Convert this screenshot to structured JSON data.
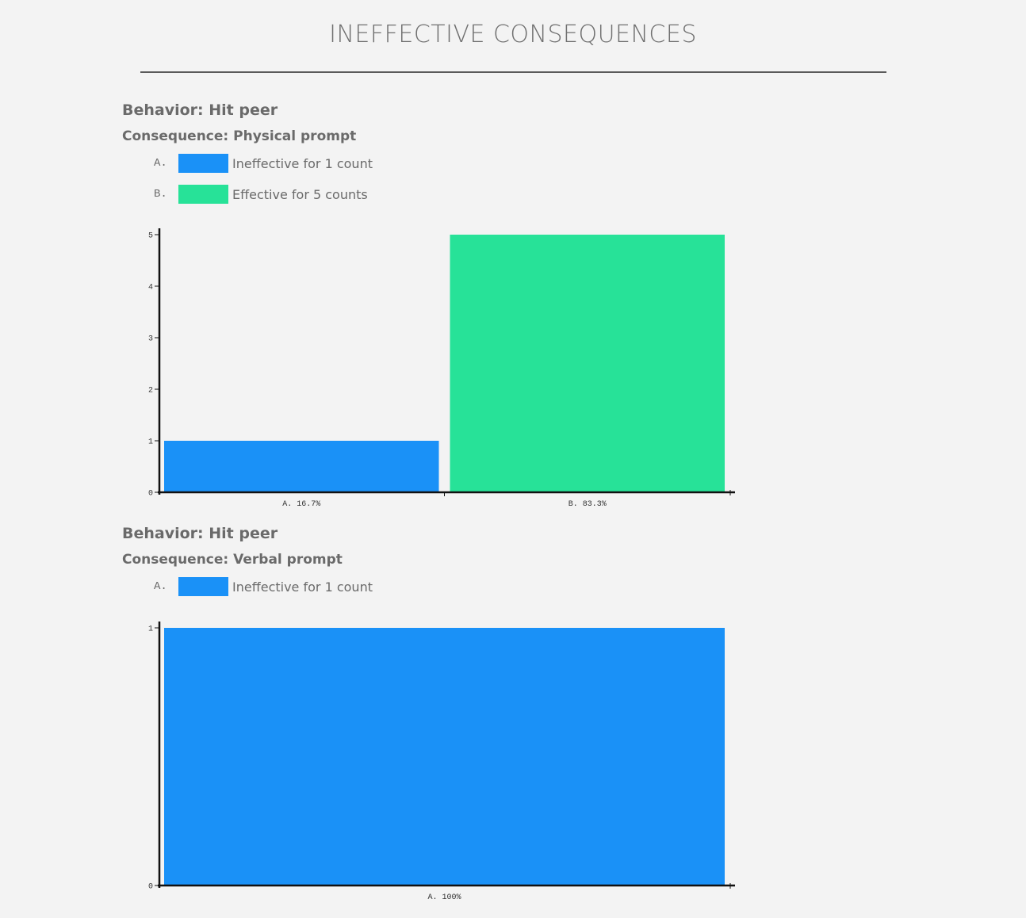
{
  "page": {
    "title": "INEFFECTIVE CONSEQUENCES"
  },
  "colors": {
    "ineffective": "#1a91f7",
    "effective": "#27e298",
    "axis": "#111111"
  },
  "sections": [
    {
      "behavior": "Behavior: Hit peer",
      "consequence": "Consequence: Physical prompt",
      "legend": [
        {
          "letter": "A.",
          "text": "Ineffective for 1 count",
          "color": "#1a91f7"
        },
        {
          "letter": "B.",
          "text": "Effective for 5 counts",
          "color": "#27e298"
        }
      ]
    },
    {
      "behavior": "Behavior: Hit peer",
      "consequence": "Consequence: Verbal prompt",
      "legend": [
        {
          "letter": "A.",
          "text": "Ineffective for 1 count",
          "color": "#1a91f7"
        }
      ]
    }
  ],
  "chart_data": [
    {
      "type": "bar",
      "categories": [
        "A. 16.7%",
        "B. 83.3%"
      ],
      "values": [
        1,
        5
      ],
      "colors": [
        "#1a91f7",
        "#27e298"
      ],
      "yticks": [
        0,
        1,
        2,
        3,
        4,
        5
      ],
      "ylim": [
        0,
        5
      ],
      "grid": false
    },
    {
      "type": "bar",
      "categories": [
        "A. 100%"
      ],
      "values": [
        1
      ],
      "colors": [
        "#1a91f7"
      ],
      "yticks": [
        0,
        1
      ],
      "ylim": [
        0,
        1
      ],
      "grid": false
    }
  ]
}
